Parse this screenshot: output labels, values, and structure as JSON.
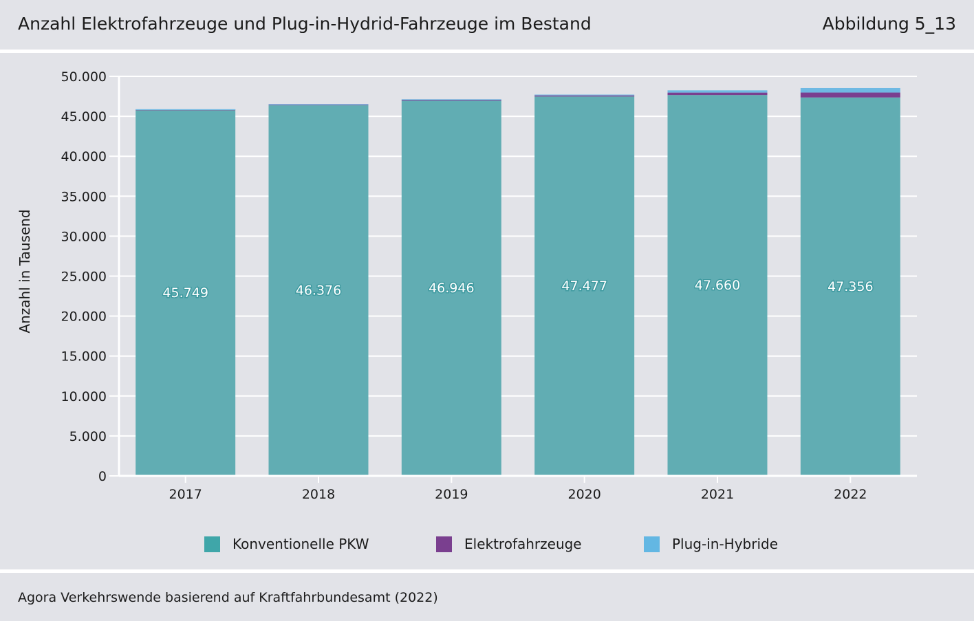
{
  "header": {
    "title": "Anzahl Elektrofahrzeuge und Plug-in-Hydrid-Fahrzeuge im Bestand",
    "figure_label": "Abbildung 5_13"
  },
  "footer": {
    "source": "Agora Verkehrswende basierend auf Kraftfahrbundesamt (2022)"
  },
  "chart_data": {
    "type": "bar",
    "stacked": true,
    "title": "Anzahl Elektrofahrzeuge und Plug-in-Hydrid-Fahrzeuge im Bestand",
    "xlabel": "",
    "ylabel": "Anzahl in Tausend",
    "ylim": [
      0,
      50000
    ],
    "yticks": [
      0,
      5000,
      10000,
      15000,
      20000,
      25000,
      30000,
      35000,
      40000,
      45000,
      50000
    ],
    "ytick_labels": [
      "0",
      "5.000",
      "10.000",
      "15.000",
      "20.000",
      "25.000",
      "30.000",
      "35.000",
      "40.000",
      "45.000",
      "50.000"
    ],
    "categories": [
      "2017",
      "2018",
      "2019",
      "2020",
      "2021",
      "2022"
    ],
    "series": [
      {
        "name": "Konventionelle PKW",
        "color": "#61adb3",
        "legend_color": "#3fa6a9",
        "values": [
          45749,
          46376,
          46946,
          47477,
          47660,
          47356
        ],
        "labels": [
          "45.749",
          "46.376",
          "46.946",
          "47.477",
          "47.660",
          "47.356"
        ]
      },
      {
        "name": "Elektrofahrzeuge",
        "color": "#7a3f8f",
        "legend_color": "#7a3f8f",
        "values": [
          34,
          54,
          83,
          136,
          309,
          618
        ]
      },
      {
        "name": "Plug-in-Hybride",
        "color": "#6fb9e3",
        "legend_color": "#63b7e3",
        "values": [
          20,
          44,
          67,
          102,
          280,
          565
        ]
      }
    ],
    "grid": true,
    "legend_position": "bottom"
  }
}
